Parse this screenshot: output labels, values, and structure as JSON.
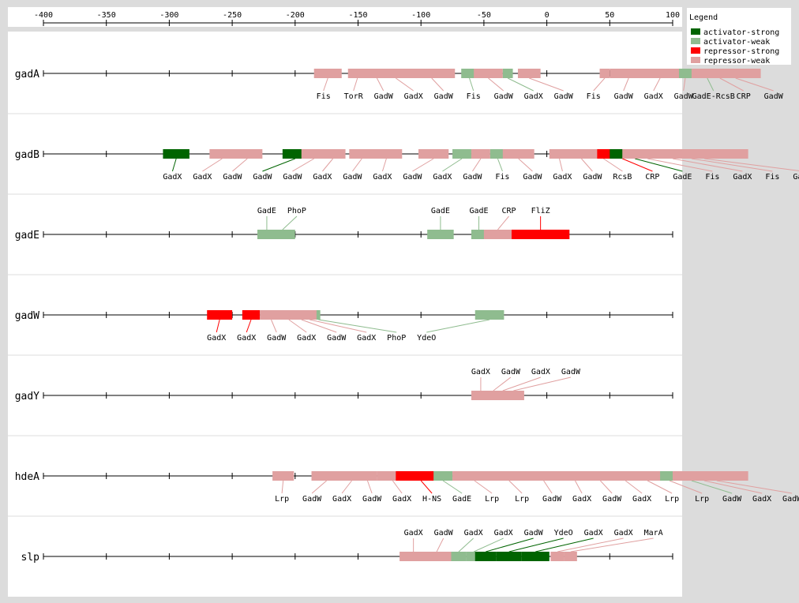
{
  "chart_data": {
    "type": "regulatory-binding-map",
    "axis": {
      "range": [
        -400,
        100
      ],
      "ticks": [
        -400,
        -350,
        -300,
        -250,
        -200,
        -150,
        -100,
        -50,
        0,
        50,
        100
      ]
    },
    "legend": {
      "title": "Legend",
      "entries": [
        {
          "key": "activator-strong",
          "label": "activator-strong",
          "color": "#006400"
        },
        {
          "key": "activator-weak",
          "label": "activator-weak",
          "color": "#8fbc8f"
        },
        {
          "key": "repressor-strong",
          "label": "repressor-strong",
          "color": "#ff0000"
        },
        {
          "key": "repressor-weak",
          "label": "repressor-weak",
          "color": "#e0a0a0"
        }
      ]
    },
    "rows": [
      {
        "name": "gadA",
        "label_side": "below",
        "sites": [
          {
            "label": "Fis",
            "type": "repressor-weak",
            "start": -185,
            "end": -163
          },
          {
            "label": "TorR",
            "type": "repressor-weak",
            "start": -158,
            "end": -143
          },
          {
            "label": "GadW",
            "type": "repressor-weak",
            "start": -150,
            "end": -120
          },
          {
            "label": "GadX",
            "type": "repressor-weak",
            "start": -140,
            "end": -100
          },
          {
            "label": "GadW",
            "type": "repressor-weak",
            "start": -110,
            "end": -73
          },
          {
            "label": "Fis",
            "type": "activator-weak",
            "start": -68,
            "end": -55
          },
          {
            "label": "GadW",
            "type": "repressor-weak",
            "start": -58,
            "end": -35
          },
          {
            "label": "GadX",
            "type": "activator-weak",
            "start": -35,
            "end": -27
          },
          {
            "label": "GadW",
            "type": "repressor-weak",
            "start": -23,
            "end": -5
          },
          {
            "label": "Fis",
            "type": "repressor-weak",
            "start": 42,
            "end": 50
          },
          {
            "label": "GadW",
            "type": "repressor-weak",
            "start": 50,
            "end": 80
          },
          {
            "label": "GadX",
            "type": "repressor-weak",
            "start": 70,
            "end": 110
          },
          {
            "label": "GadW",
            "type": "repressor-weak",
            "start": 90,
            "end": 130
          },
          {
            "label": "GadE-RcsB",
            "type": "activator-weak",
            "start": 105,
            "end": 150
          },
          {
            "label": "CRP",
            "type": "repressor-weak",
            "start": 115,
            "end": 160
          },
          {
            "label": "GadW",
            "type": "repressor-weak",
            "start": 130,
            "end": 170
          }
        ]
      },
      {
        "name": "gadB",
        "label_side": "below",
        "sites": [
          {
            "label": "GadX",
            "type": "activator-strong",
            "start": -305,
            "end": -284
          },
          {
            "label": "GadX",
            "type": "repressor-weak",
            "start": -268,
            "end": -248
          },
          {
            "label": "GadW",
            "type": "repressor-weak",
            "start": -250,
            "end": -226
          },
          {
            "label": "GadW",
            "type": "activator-strong",
            "start": -210,
            "end": -190
          },
          {
            "label": "GadW",
            "type": "repressor-weak",
            "start": -195,
            "end": -175
          },
          {
            "label": "GadX",
            "type": "repressor-weak",
            "start": -180,
            "end": -160
          },
          {
            "label": "GadW",
            "type": "repressor-weak",
            "start": -157,
            "end": -137
          },
          {
            "label": "GadX",
            "type": "repressor-weak",
            "start": -140,
            "end": -115
          },
          {
            "label": "GadW",
            "type": "repressor-weak",
            "start": -102,
            "end": -78
          },
          {
            "label": "GadX",
            "type": "activator-weak",
            "start": -75,
            "end": -60
          },
          {
            "label": "GadW",
            "type": "repressor-weak",
            "start": -60,
            "end": -45
          },
          {
            "label": "Fis",
            "type": "activator-weak",
            "start": -45,
            "end": -33
          },
          {
            "label": "GadW",
            "type": "repressor-weak",
            "start": -35,
            "end": -10
          },
          {
            "label": "GadX",
            "type": "repressor-weak",
            "start": 2,
            "end": 18
          },
          {
            "label": "GadW",
            "type": "repressor-weak",
            "start": 15,
            "end": 40
          },
          {
            "label": "RcsB",
            "type": "repressor-weak",
            "start": 30,
            "end": 60
          },
          {
            "label": "CRP",
            "type": "repressor-strong",
            "start": 40,
            "end": 80
          },
          {
            "label": "GadE",
            "type": "activator-strong",
            "start": 50,
            "end": 90
          },
          {
            "label": "Fis",
            "type": "repressor-weak",
            "start": 60,
            "end": 100
          },
          {
            "label": "GadX",
            "type": "repressor-weak",
            "start": 70,
            "end": 130
          },
          {
            "label": "Fis",
            "type": "repressor-weak",
            "start": 80,
            "end": 150
          },
          {
            "label": "GadW",
            "type": "repressor-weak",
            "start": 90,
            "end": 160
          }
        ]
      },
      {
        "name": "gadE",
        "label_side": "above",
        "sites": [
          {
            "label": "GadE",
            "type": "activator-weak",
            "start": -230,
            "end": -215
          },
          {
            "label": "PhoP",
            "type": "activator-weak",
            "start": -220,
            "end": -200
          },
          {
            "label": "GadE",
            "type": "activator-weak",
            "start": -95,
            "end": -74
          },
          {
            "label": "GadE",
            "type": "activator-weak",
            "start": -60,
            "end": -48
          },
          {
            "label": "CRP",
            "type": "repressor-weak",
            "start": -50,
            "end": -28
          },
          {
            "label": "FliZ",
            "type": "repressor-strong",
            "start": -28,
            "end": 18
          }
        ]
      },
      {
        "name": "gadW",
        "label_side": "below",
        "sites": [
          {
            "label": "GadX",
            "type": "repressor-strong",
            "start": -270,
            "end": -250
          },
          {
            "label": "GadX",
            "type": "repressor-strong",
            "start": -242,
            "end": -228
          },
          {
            "label": "GadW",
            "type": "repressor-weak",
            "start": -228,
            "end": -210
          },
          {
            "label": "GadX",
            "type": "repressor-weak",
            "start": -215,
            "end": -195
          },
          {
            "label": "GadW",
            "type": "repressor-weak",
            "start": -205,
            "end": -185
          },
          {
            "label": "GadX",
            "type": "repressor-weak",
            "start": -195,
            "end": -182
          },
          {
            "label": "PhoP",
            "type": "activator-weak",
            "start": -183,
            "end": -180
          },
          {
            "label": "YdeO",
            "type": "activator-weak",
            "start": -57,
            "end": -34
          }
        ]
      },
      {
        "name": "gadY",
        "label_side": "above",
        "sites": [
          {
            "label": "GadX",
            "type": "repressor-weak",
            "start": -60,
            "end": -45
          },
          {
            "label": "GadW",
            "type": "repressor-weak",
            "start": -50,
            "end": -35
          },
          {
            "label": "GadX",
            "type": "repressor-weak",
            "start": -42,
            "end": -28
          },
          {
            "label": "GadW",
            "type": "repressor-weak",
            "start": -35,
            "end": -18
          }
        ]
      },
      {
        "name": "hdeA",
        "label_side": "below",
        "sites": [
          {
            "label": "Lrp",
            "type": "repressor-weak",
            "start": -218,
            "end": -201
          },
          {
            "label": "GadW",
            "type": "repressor-weak",
            "start": -187,
            "end": -163
          },
          {
            "label": "GadX",
            "type": "repressor-weak",
            "start": -165,
            "end": -145
          },
          {
            "label": "GadW",
            "type": "repressor-weak",
            "start": -150,
            "end": -135
          },
          {
            "label": "GadX",
            "type": "repressor-weak",
            "start": -135,
            "end": -110
          },
          {
            "label": "H-NS",
            "type": "repressor-strong",
            "start": -120,
            "end": -80
          },
          {
            "label": "GadE",
            "type": "activator-weak",
            "start": -90,
            "end": -75
          },
          {
            "label": "Lrp",
            "type": "repressor-weak",
            "start": -75,
            "end": -40
          },
          {
            "label": "Lrp",
            "type": "repressor-weak",
            "start": -45,
            "end": -15
          },
          {
            "label": "GadW",
            "type": "repressor-weak",
            "start": -20,
            "end": 15
          },
          {
            "label": "GadX",
            "type": "repressor-weak",
            "start": 5,
            "end": 40
          },
          {
            "label": "GadW",
            "type": "repressor-weak",
            "start": 25,
            "end": 60
          },
          {
            "label": "GadX",
            "type": "repressor-weak",
            "start": 45,
            "end": 80
          },
          {
            "label": "Lrp",
            "type": "repressor-weak",
            "start": 60,
            "end": 100
          },
          {
            "label": "Lrp",
            "type": "repressor-weak",
            "start": 75,
            "end": 120
          },
          {
            "label": "GadW",
            "type": "activator-weak",
            "start": 90,
            "end": 140
          },
          {
            "label": "GadX",
            "type": "repressor-weak",
            "start": 100,
            "end": 150
          },
          {
            "label": "GadW",
            "type": "repressor-weak",
            "start": 110,
            "end": 160
          }
        ]
      },
      {
        "name": "slp",
        "label_side": "above",
        "sites": [
          {
            "label": "GadX",
            "type": "repressor-weak",
            "start": -117,
            "end": -95
          },
          {
            "label": "GadW",
            "type": "repressor-weak",
            "start": -100,
            "end": -75
          },
          {
            "label": "GadX",
            "type": "activator-weak",
            "start": -76,
            "end": -64
          },
          {
            "label": "GadX",
            "type": "activator-weak",
            "start": -64,
            "end": -52
          },
          {
            "label": "GadW",
            "type": "activator-strong",
            "start": -57,
            "end": -40
          },
          {
            "label": "YdeO",
            "type": "activator-strong",
            "start": -40,
            "end": -20
          },
          {
            "label": "GadX",
            "type": "activator-strong",
            "start": -20,
            "end": 2
          },
          {
            "label": "GadX",
            "type": "repressor-weak",
            "start": 3,
            "end": 14
          },
          {
            "label": "MarA",
            "type": "repressor-weak",
            "start": 14,
            "end": 24
          }
        ]
      }
    ]
  }
}
